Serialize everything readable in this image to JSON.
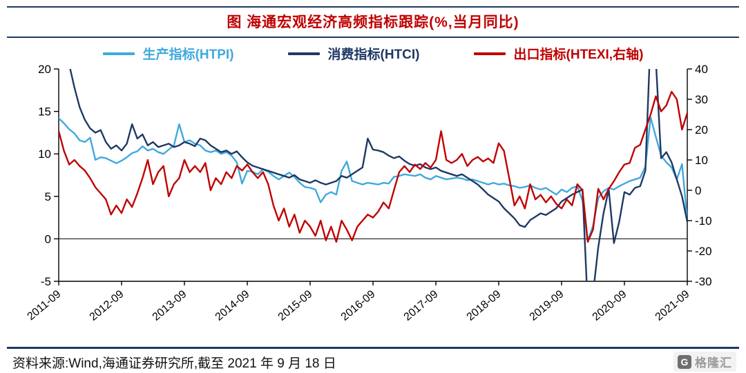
{
  "header": {
    "title": "图  海通宏观经济高频指标跟踪(%,当月同比)"
  },
  "footer": {
    "source": "资料来源:Wind,海通证券研究所,截至 2021 年 9 月 18 日",
    "logo_glyph": "G",
    "logo_text": "格隆汇"
  },
  "colors": {
    "title_red": "#C00000",
    "border_navy": "#1F3864",
    "axis_black": "#000000"
  },
  "chart_data": {
    "type": "line",
    "title": "图  海通宏观经济高频指标跟踪(%,当月同比)",
    "x_start": "2011-09",
    "x_end": "2021-09",
    "x_frequency": "monthly",
    "x_ticklabels": [
      "2011-09",
      "2012-09",
      "2013-09",
      "2014-09",
      "2015-09",
      "2016-09",
      "2017-09",
      "2018-09",
      "2019-09",
      "2020-09",
      "2021-09"
    ],
    "left_axis": {
      "lim": [
        -5,
        20
      ],
      "ticks": [
        20,
        15,
        10,
        5,
        0,
        -5
      ]
    },
    "right_axis": {
      "lim": [
        -30,
        40
      ],
      "ticks": [
        40,
        30,
        20,
        10,
        0,
        -10,
        -20,
        -30
      ]
    },
    "zero_line_left_axis": 0,
    "legend_position": "top",
    "grid": false,
    "series": [
      {
        "name": "生产指标(HTPI)",
        "color": "#3FA9DC",
        "axis": "left",
        "values": [
          14.2,
          13.6,
          12.9,
          12.4,
          11.6,
          11.4,
          11.9,
          9.3,
          9.6,
          9.5,
          9.2,
          8.9,
          9.2,
          9.6,
          10.1,
          10.3,
          10.9,
          10.4,
          10.6,
          10.2,
          10.0,
          10.5,
          11.0,
          13.5,
          11.4,
          11.6,
          11.2,
          11.0,
          10.4,
          10.2,
          10.4,
          10.0,
          10.2,
          9.8,
          9.0,
          6.5,
          8.0,
          7.9,
          7.6,
          8.2,
          7.9,
          7.4,
          7.0,
          7.4,
          7.8,
          7.3,
          6.6,
          6.1,
          6.0,
          5.8,
          4.3,
          5.2,
          5.5,
          5.2,
          8.0,
          9.1,
          6.8,
          6.6,
          6.4,
          6.6,
          6.5,
          6.4,
          6.6,
          6.5,
          7.3,
          7.4,
          7.6,
          7.5,
          7.4,
          7.6,
          7.2,
          7.0,
          7.4,
          7.2,
          7.0,
          7.1,
          7.2,
          7.1,
          6.9,
          7.0,
          6.8,
          6.6,
          6.4,
          6.6,
          6.4,
          6.5,
          6.3,
          6.2,
          6.0,
          6.1,
          6.3,
          6.0,
          5.8,
          6.0,
          5.6,
          5.2,
          5.8,
          5.5,
          6.0,
          6.2,
          4.5,
          -0.2,
          1.5,
          4.8,
          5.6,
          6.0,
          5.8,
          6.2,
          6.5,
          6.8,
          7.0,
          7.2,
          8.5,
          14.3,
          12.0,
          9.8,
          9.0,
          8.4,
          7.0,
          8.8,
          2.2
        ]
      },
      {
        "name": "消费指标(HTCI)",
        "color": "#1F3864",
        "axis": "left",
        "values": [
          23.0,
          22.0,
          20.5,
          17.8,
          15.5,
          14.0,
          13.0,
          12.5,
          12.8,
          11.4,
          10.6,
          11.0,
          10.4,
          11.2,
          13.5,
          11.8,
          12.3,
          11.0,
          11.4,
          10.8,
          11.0,
          11.2,
          10.8,
          11.0,
          11.4,
          11.2,
          10.9,
          11.8,
          11.6,
          11.0,
          10.6,
          10.2,
          10.4,
          10.0,
          10.3,
          9.6,
          9.0,
          8.6,
          8.4,
          8.2,
          8.0,
          7.8,
          7.6,
          7.4,
          7.2,
          7.5,
          7.0,
          6.8,
          6.6,
          6.9,
          6.6,
          6.4,
          6.6,
          6.8,
          7.4,
          7.2,
          7.6,
          8.0,
          8.4,
          11.8,
          10.5,
          10.4,
          10.2,
          9.8,
          9.5,
          9.7,
          9.2,
          8.8,
          8.6,
          8.8,
          8.4,
          8.2,
          8.4,
          8.0,
          7.8,
          7.6,
          7.4,
          7.6,
          7.2,
          6.8,
          6.4,
          5.8,
          5.2,
          4.8,
          4.4,
          3.6,
          3.0,
          2.4,
          1.6,
          1.4,
          2.2,
          2.6,
          3.0,
          2.8,
          3.2,
          3.6,
          4.4,
          4.8,
          5.2,
          5.5,
          5.8,
          -8.0,
          -6.5,
          -1.0,
          3.0,
          5.8,
          -0.5,
          2.0,
          5.5,
          5.2,
          6.0,
          6.2,
          8.0,
          24.0,
          21.0,
          9.5,
          10.2,
          9.0,
          7.0,
          5.0,
          2.0
        ]
      },
      {
        "name": "出口指标(HTEXI,右轴)",
        "color": "#C00000",
        "axis": "right",
        "values": [
          19.5,
          13.0,
          8.5,
          10.0,
          8.0,
          6.5,
          4.0,
          1.0,
          -1.0,
          -3.0,
          -8.0,
          -5.0,
          -7.5,
          -3.0,
          -5.5,
          -1.0,
          4.0,
          10.0,
          2.0,
          6.0,
          8.0,
          -2.0,
          2.0,
          4.0,
          10.0,
          6.0,
          8.0,
          6.0,
          9.0,
          0.0,
          4.0,
          2.0,
          6.0,
          4.0,
          8.0,
          6.5,
          8.5,
          6.0,
          4.0,
          6.0,
          2.0,
          -5.0,
          -10.0,
          -6.0,
          -12.0,
          -8.0,
          -14.0,
          -10.0,
          -12.0,
          -15.0,
          -10.0,
          -16.5,
          -12.0,
          -17.0,
          -10.0,
          -13.0,
          -16.5,
          -12.0,
          -10.0,
          -8.0,
          -9.0,
          -7.0,
          -4.0,
          -6.0,
          0.0,
          6.0,
          8.0,
          6.0,
          8.5,
          7.0,
          9.0,
          7.5,
          10.0,
          19.5,
          10.0,
          9.0,
          10.0,
          12.0,
          8.0,
          10.0,
          11.0,
          9.5,
          10.5,
          9.0,
          15.5,
          13.0,
          4.0,
          -5.0,
          -2.0,
          -6.0,
          2.0,
          -3.0,
          -1.5,
          -4.0,
          -2.0,
          -4.5,
          -6.0,
          -3.0,
          -5.0,
          2.0,
          0.0,
          -17.0,
          -13.0,
          0.5,
          -3.0,
          0.5,
          3.0,
          6.0,
          8.5,
          9.0,
          14.0,
          15.0,
          20.0,
          25.0,
          31.0,
          26.0,
          28.0,
          32.5,
          30.0,
          20.0,
          25.5
        ]
      }
    ]
  }
}
